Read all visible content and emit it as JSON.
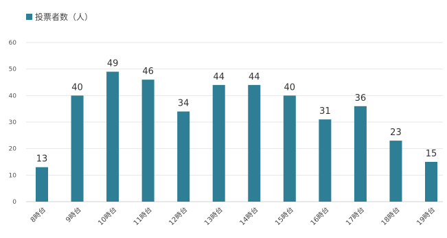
{
  "chart_data": {
    "type": "bar",
    "title": "",
    "xlabel": "",
    "ylabel": "",
    "legend_position": "top-left",
    "grid": true,
    "ylim": [
      0,
      60
    ],
    "yticks": [
      0,
      10,
      20,
      30,
      40,
      50,
      60
    ],
    "categories": [
      "8時台",
      "9時台",
      "10時台",
      "11時台",
      "12時台",
      "13時台",
      "14時台",
      "15時台",
      "16時台",
      "17時台",
      "18時台",
      "19時台"
    ],
    "series": [
      {
        "name": "投票者数（人）",
        "color": "#2e7f95",
        "values": [
          13,
          40,
          49,
          46,
          34,
          44,
          44,
          40,
          31,
          36,
          23,
          15
        ]
      }
    ]
  }
}
